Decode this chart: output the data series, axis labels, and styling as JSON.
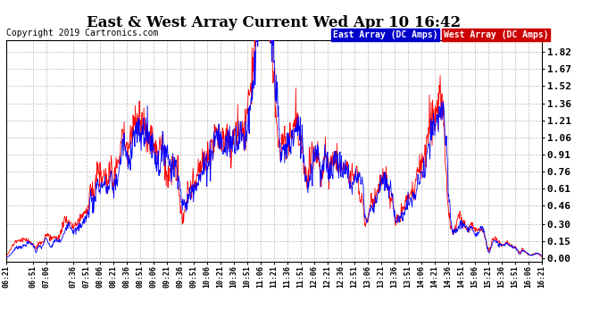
{
  "title": "East & West Array Current Wed Apr 10 16:42",
  "copyright": "Copyright 2019 Cartronics.com",
  "legend_east": "East Array (DC Amps)",
  "legend_west": "West Array (DC Amps)",
  "east_color": "#0000ff",
  "west_color": "#ff0000",
  "legend_east_bg": "#0000cc",
  "legend_west_bg": "#cc0000",
  "background_color": "#ffffff",
  "plot_bg": "#ffffff",
  "grid_color": "#bbbbbb",
  "yticks": [
    0.0,
    0.15,
    0.3,
    0.46,
    0.61,
    0.76,
    0.91,
    1.06,
    1.21,
    1.36,
    1.52,
    1.67,
    1.82
  ],
  "ymin": -0.03,
  "ymax": 1.92,
  "xtick_labels": [
    "06:21",
    "06:51",
    "07:06",
    "07:36",
    "07:51",
    "08:06",
    "08:21",
    "08:36",
    "08:51",
    "09:06",
    "09:21",
    "09:36",
    "09:51",
    "10:06",
    "10:21",
    "10:36",
    "10:51",
    "11:06",
    "11:21",
    "11:36",
    "11:51",
    "12:06",
    "12:21",
    "12:36",
    "12:51",
    "13:06",
    "13:21",
    "13:36",
    "13:51",
    "14:06",
    "14:21",
    "14:36",
    "14:51",
    "15:06",
    "15:21",
    "15:36",
    "15:51",
    "16:06",
    "16:21"
  ]
}
